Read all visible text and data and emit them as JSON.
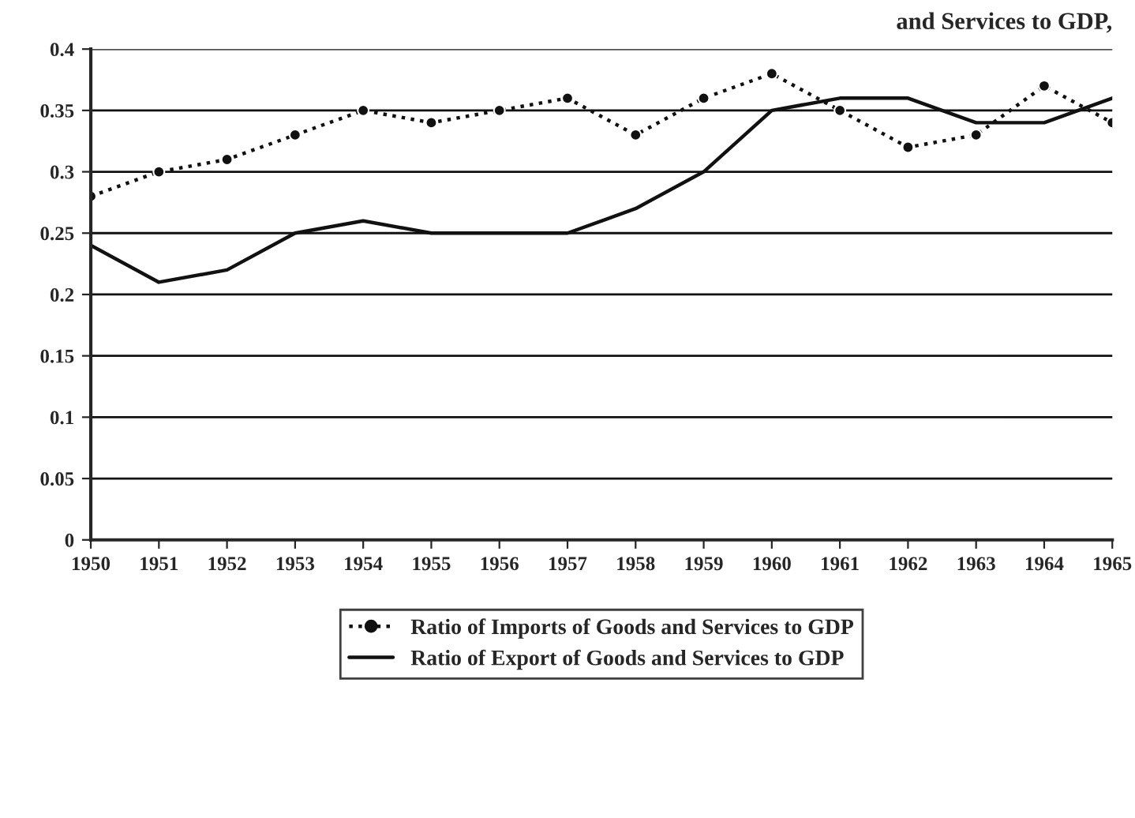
{
  "chart_data": {
    "type": "line",
    "title": "and Services to GDP,",
    "x": [
      1950,
      1951,
      1952,
      1953,
      1954,
      1955,
      1956,
      1957,
      1958,
      1959,
      1960,
      1961,
      1962,
      1963,
      1964,
      1965
    ],
    "series": [
      {
        "name": "Ratio of Imports of Goods and Services to GDP",
        "color": "#111111",
        "line_style": "dotted",
        "marker": "circle",
        "values": [
          0.28,
          0.3,
          0.31,
          0.33,
          0.35,
          0.34,
          0.35,
          0.36,
          0.33,
          0.36,
          0.38,
          0.35,
          0.32,
          0.33,
          0.37,
          0.34
        ]
      },
      {
        "name": "Ratio of Export of Goods and Services to GDP",
        "color": "#111111",
        "line_style": "solid",
        "marker": "none",
        "values": [
          0.24,
          0.21,
          0.22,
          0.25,
          0.26,
          0.25,
          0.25,
          0.25,
          0.27,
          0.3,
          0.35,
          0.36,
          0.36,
          0.34,
          0.34,
          0.36
        ]
      }
    ],
    "xlim": [
      1950,
      1965
    ],
    "xticks": [
      1950,
      1951,
      1952,
      1953,
      1954,
      1955,
      1956,
      1957,
      1958,
      1959,
      1960,
      1961,
      1962,
      1963,
      1964,
      1965
    ],
    "ylim": [
      0,
      0.4
    ],
    "yticks": [
      0,
      0.05,
      0.1,
      0.15,
      0.2,
      0.25,
      0.3,
      0.35,
      0.4
    ],
    "grid": "y",
    "legend": "bottom"
  }
}
